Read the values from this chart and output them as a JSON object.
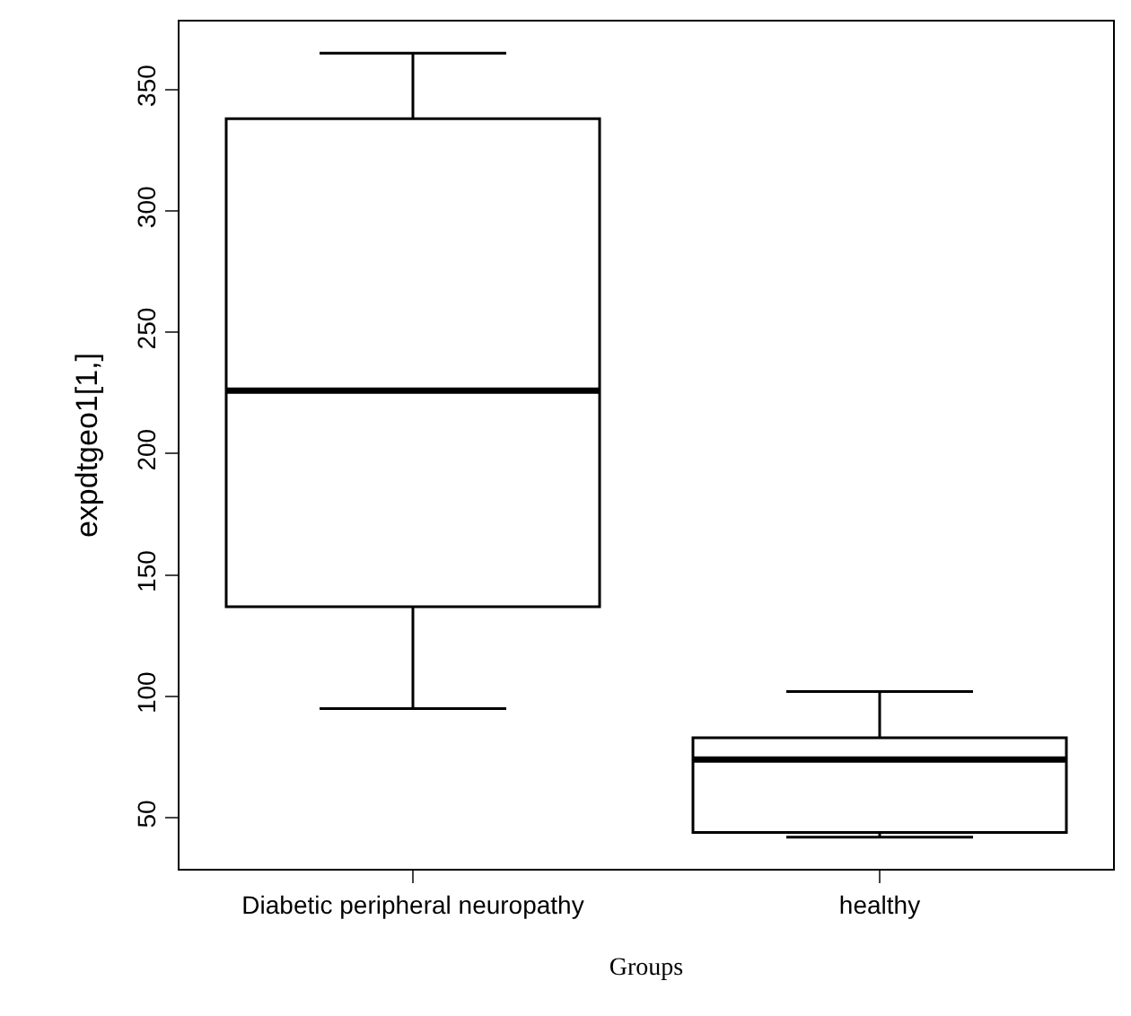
{
  "chart_data": {
    "type": "box",
    "xlabel": "Groups",
    "ylabel": "expdtgeo1[1,]",
    "categories": [
      "Diabetic peripheral neuropathy",
      "healthy"
    ],
    "boxes": [
      {
        "low": 95,
        "q1": 137,
        "median": 226,
        "q3": 338,
        "high": 365
      },
      {
        "low": 42,
        "q1": 44,
        "median": 74,
        "q3": 83,
        "high": 102
      }
    ],
    "ylim": [
      29,
      378
    ],
    "yticks": [
      50,
      100,
      150,
      200,
      250,
      300,
      350
    ],
    "grid": false
  }
}
